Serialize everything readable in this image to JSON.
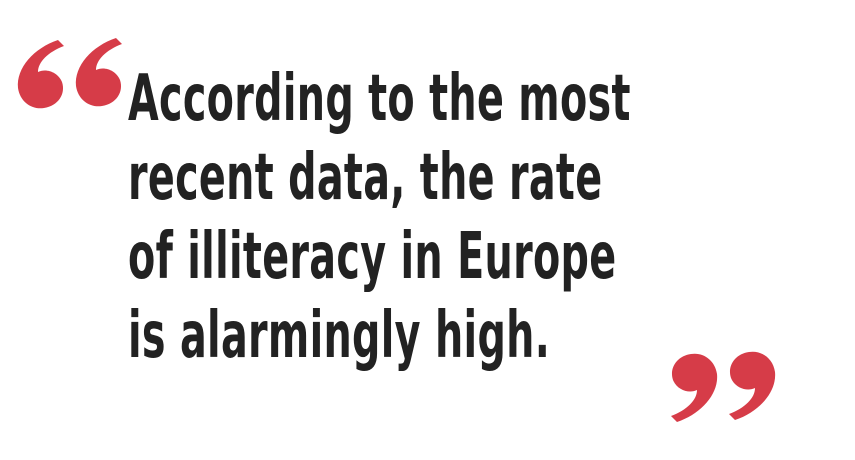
{
  "quote": {
    "lines": [
      "According to the most",
      "recent data, the rate",
      "of illiteracy in Europe",
      "is alarmingly high."
    ],
    "accent_color": "#d63c48",
    "text_color": "#222222"
  },
  "icons": {
    "open_quote": "opening-quotation-mark-icon",
    "close_quote": "closing-quotation-mark-icon"
  }
}
